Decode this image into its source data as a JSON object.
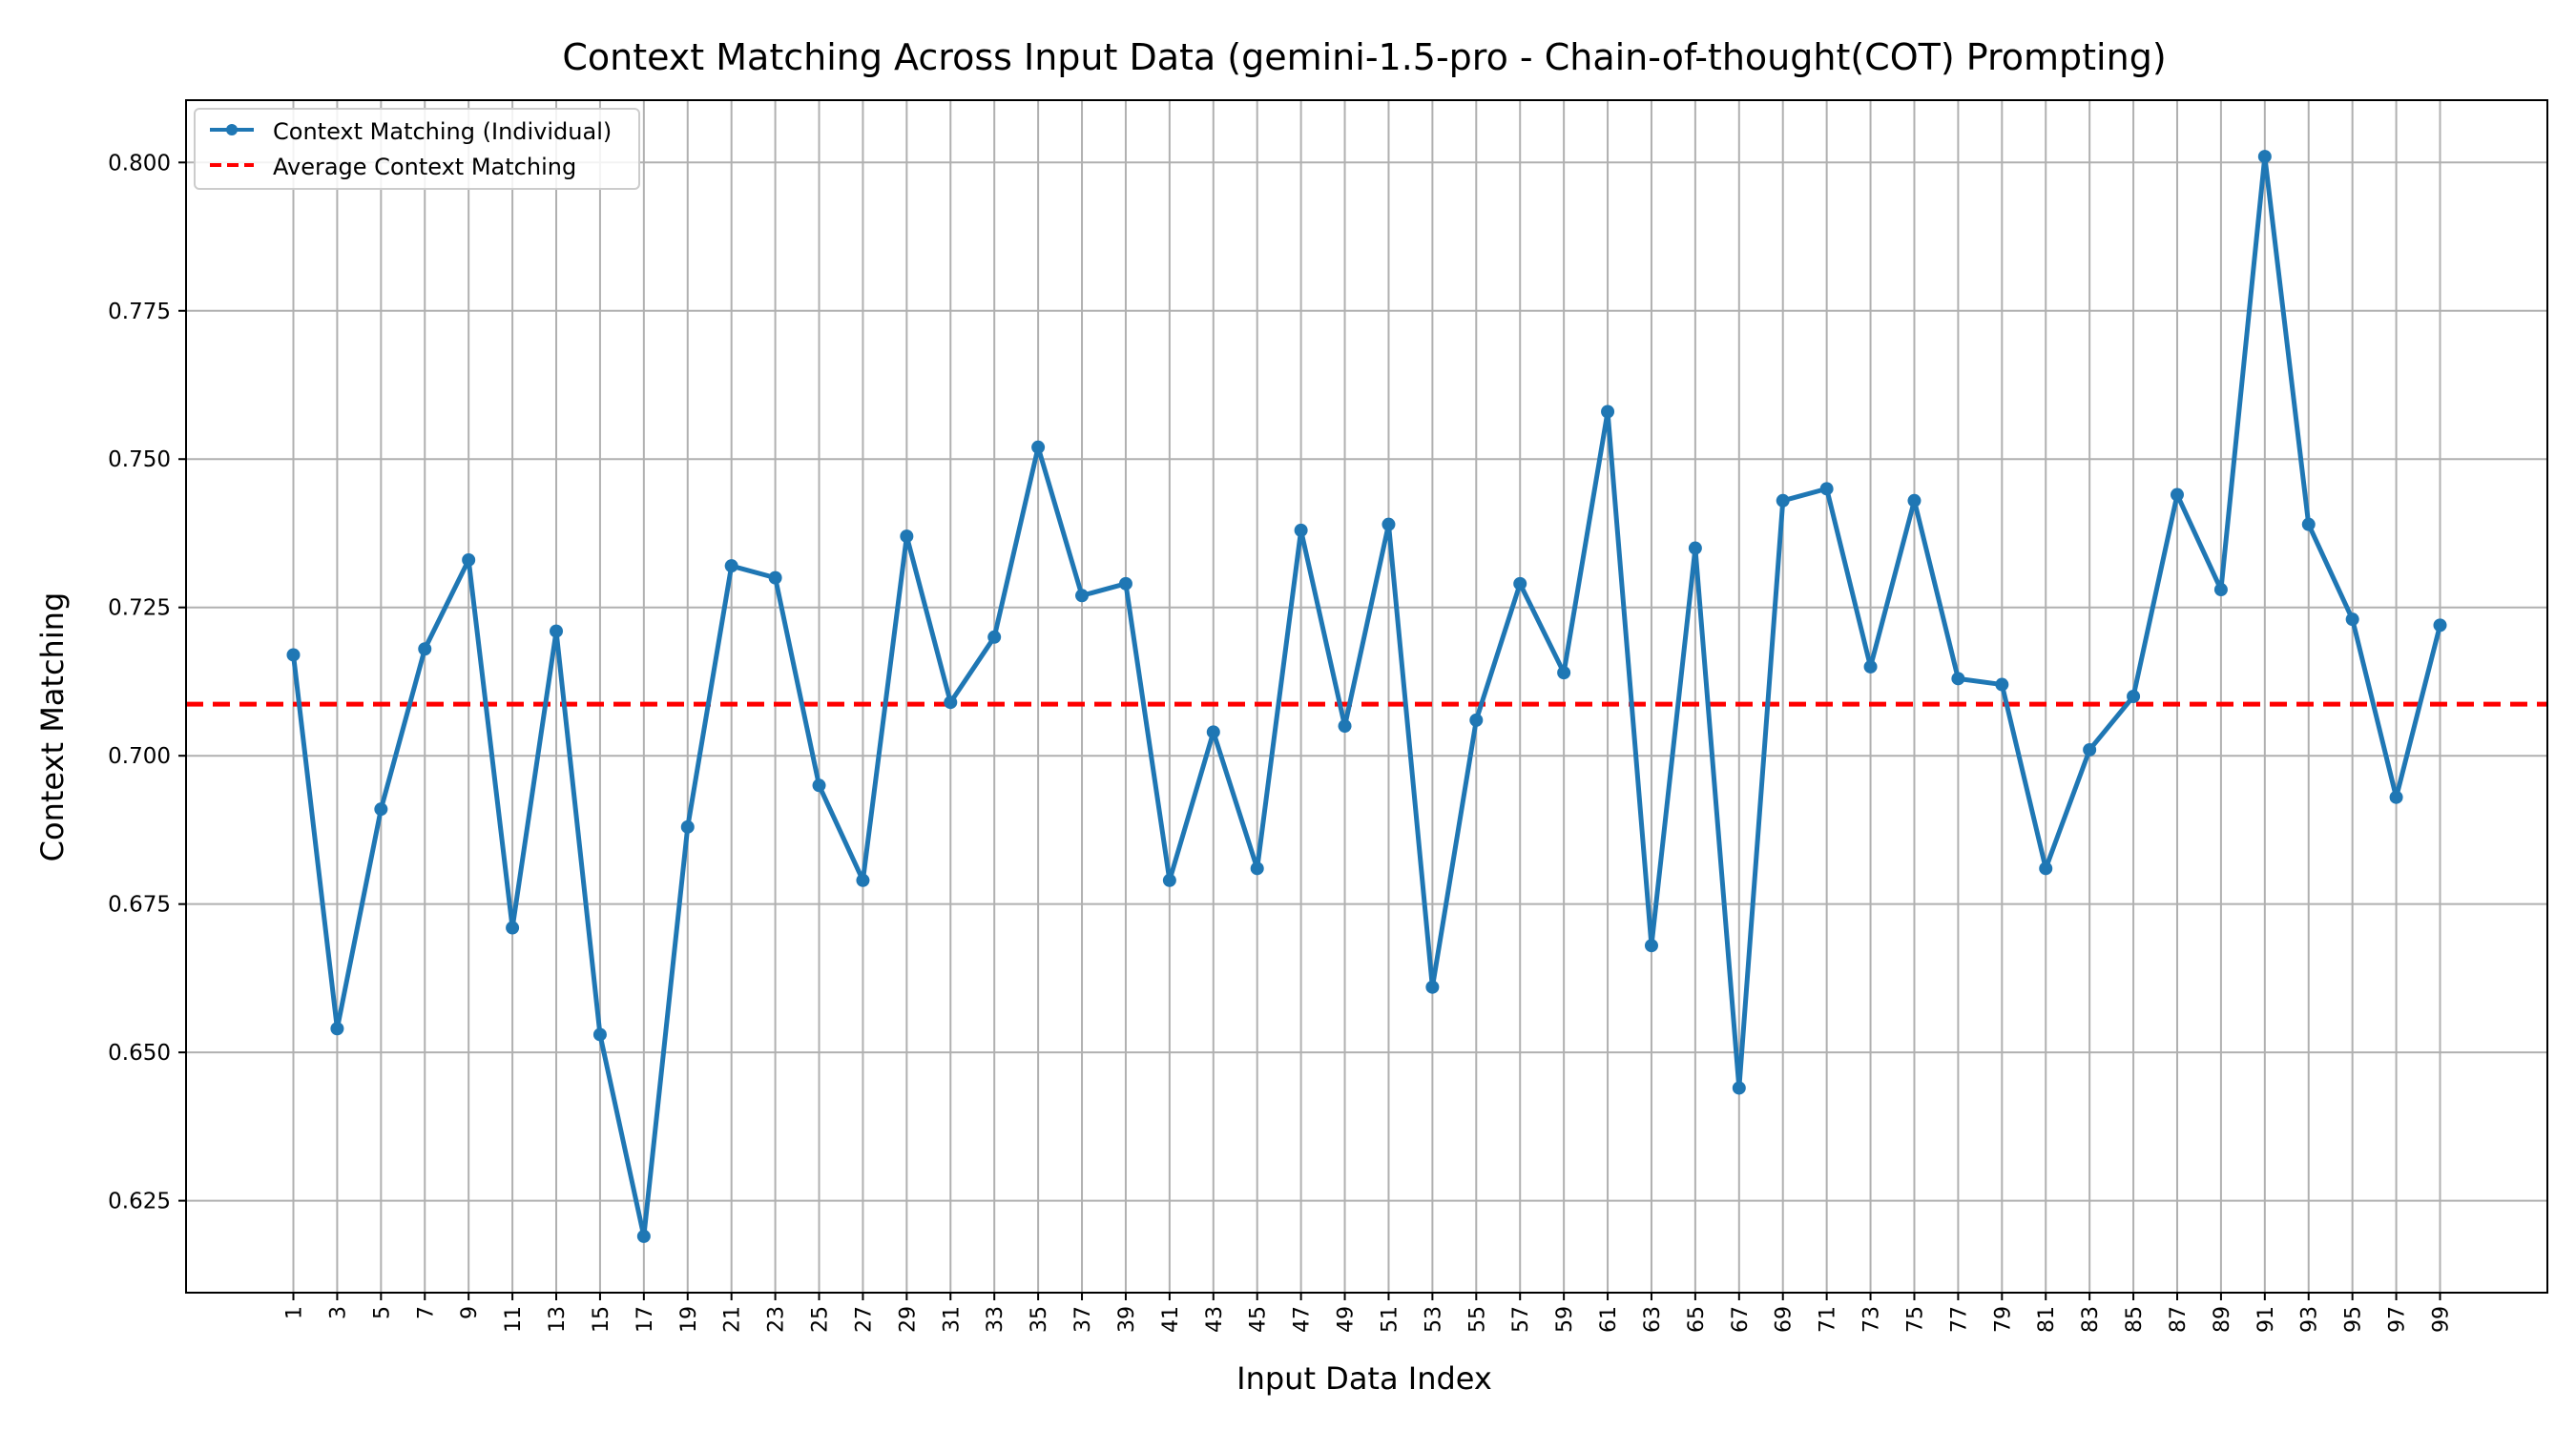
{
  "chart_data": {
    "type": "line",
    "title": "Context Matching Across Input Data (gemini-1.5-pro - Chain-of-thought(COT) Prompting)",
    "xlabel": "Input Data Index",
    "ylabel": "Context Matching",
    "x": [
      1,
      3,
      5,
      7,
      9,
      11,
      13,
      15,
      17,
      19,
      21,
      23,
      25,
      27,
      29,
      31,
      33,
      35,
      37,
      39,
      41,
      43,
      45,
      47,
      49,
      51,
      53,
      55,
      57,
      59,
      61,
      63,
      65,
      67,
      69,
      71,
      73,
      75,
      77,
      79,
      81,
      83,
      85,
      87,
      89,
      91,
      93,
      95,
      97,
      99
    ],
    "x_tick_labels": [
      "1",
      "3",
      "5",
      "7",
      "9",
      "11",
      "13",
      "15",
      "17",
      "19",
      "21",
      "23",
      "25",
      "27",
      "29",
      "31",
      "33",
      "35",
      "37",
      "39",
      "41",
      "43",
      "45",
      "47",
      "49",
      "51",
      "53",
      "55",
      "57",
      "59",
      "61",
      "63",
      "65",
      "67",
      "69",
      "71",
      "73",
      "75",
      "77",
      "79",
      "81",
      "83",
      "85",
      "87",
      "89",
      "91",
      "93",
      "95",
      "97",
      "99"
    ],
    "xlim": [
      -3.9,
      103.9
    ],
    "ylim": [
      0.6095,
      0.8105
    ],
    "y_ticks": [
      0.625,
      0.65,
      0.675,
      0.7,
      0.725,
      0.75,
      0.775,
      0.8
    ],
    "y_tick_labels": [
      "0.625",
      "0.650",
      "0.675",
      "0.700",
      "0.725",
      "0.750",
      "0.775",
      "0.800"
    ],
    "grid": true,
    "legend_position": "upper-left",
    "series": [
      {
        "name": "Context Matching (Individual)",
        "color": "#1f77b4",
        "style": "solid-with-markers",
        "values": [
          0.717,
          0.654,
          0.691,
          0.718,
          0.733,
          0.671,
          0.721,
          0.653,
          0.619,
          0.688,
          0.732,
          0.73,
          0.695,
          0.679,
          0.737,
          0.709,
          0.72,
          0.752,
          0.727,
          0.729,
          0.679,
          0.704,
          0.681,
          0.738,
          0.705,
          0.739,
          0.661,
          0.706,
          0.729,
          0.714,
          0.758,
          0.668,
          0.735,
          0.644,
          0.743,
          0.745,
          0.715,
          0.743,
          0.713,
          0.712,
          0.681,
          0.701,
          0.71,
          0.744,
          0.728,
          0.801,
          0.739,
          0.723,
          0.693,
          0.722
        ]
      },
      {
        "name": "Average Context Matching",
        "color": "#ff0000",
        "style": "dashed",
        "value": 0.7087
      }
    ]
  }
}
